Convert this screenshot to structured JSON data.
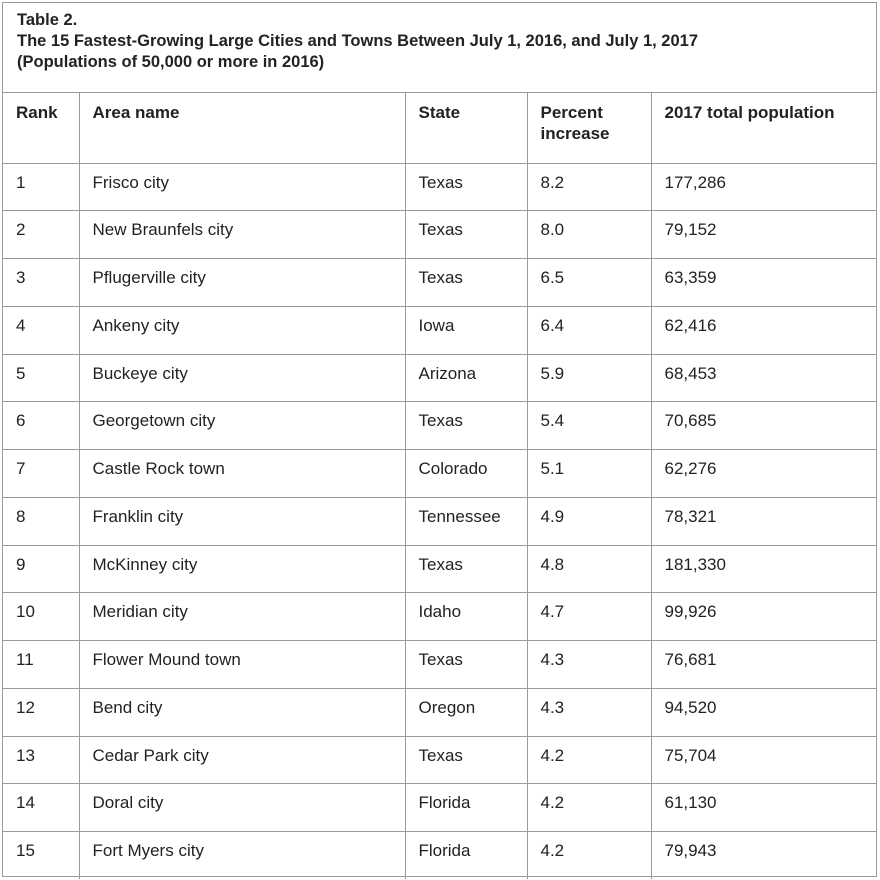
{
  "caption": {
    "line1": "Table 2.",
    "line2": "The 15 Fastest-Growing Large Cities and Towns Between July 1, 2016, and July 1, 2017",
    "line3": "(Populations of 50,000 or more in 2016)"
  },
  "headers": [
    "Rank",
    "Area name",
    "State",
    "Percent increase",
    "2017 total population"
  ],
  "rows": [
    [
      "1",
      "Frisco city",
      "Texas",
      "8.2",
      "177,286"
    ],
    [
      "2",
      "New Braunfels city",
      "Texas",
      "8.0",
      "79,152"
    ],
    [
      "3",
      "Pflugerville city",
      "Texas",
      "6.5",
      "63,359"
    ],
    [
      "4",
      "Ankeny city",
      "Iowa",
      "6.4",
      "62,416"
    ],
    [
      "5",
      "Buckeye city",
      "Arizona",
      "5.9",
      "68,453"
    ],
    [
      "6",
      "Georgetown city",
      "Texas",
      "5.4",
      "70,685"
    ],
    [
      "7",
      "Castle Rock town",
      "Colorado",
      "5.1",
      "62,276"
    ],
    [
      "8",
      "Franklin city",
      "Tennessee",
      "4.9",
      "78,321"
    ],
    [
      "9",
      "McKinney city",
      "Texas",
      "4.8",
      "181,330"
    ],
    [
      "10",
      "Meridian city",
      "Idaho",
      "4.7",
      "99,926"
    ],
    [
      "11",
      "Flower Mound town",
      "Texas",
      "4.3",
      "76,681"
    ],
    [
      "12",
      "Bend city",
      "Oregon",
      "4.3",
      "94,520"
    ],
    [
      "13",
      "Cedar Park city",
      "Texas",
      "4.2",
      "75,704"
    ],
    [
      "14",
      "Doral city",
      "Florida",
      "4.2",
      "61,130"
    ],
    [
      "15",
      "Fort Myers city",
      "Florida",
      "4.2",
      "79,943"
    ]
  ]
}
